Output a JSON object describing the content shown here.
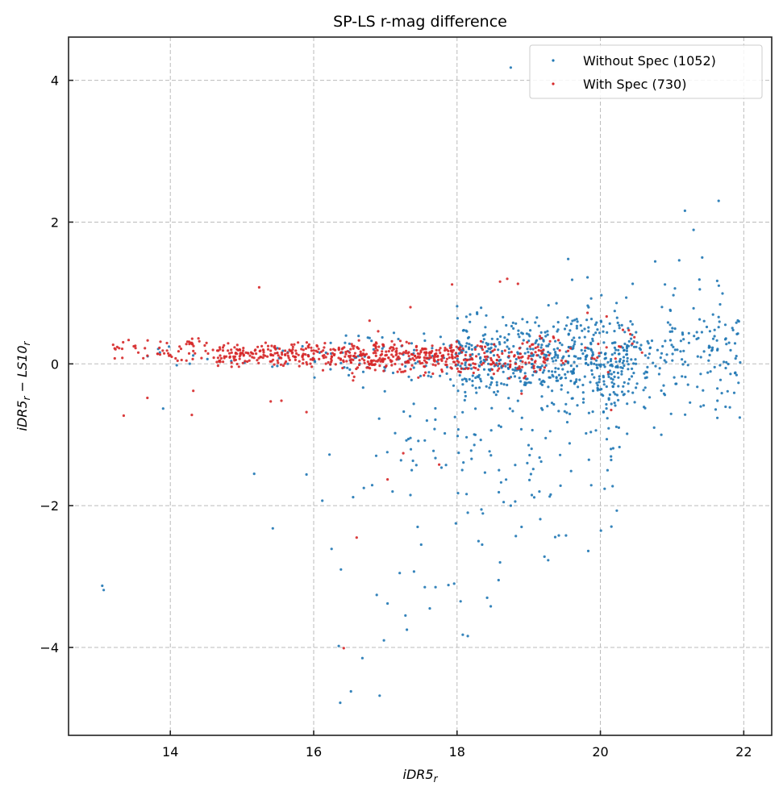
{
  "chart_data": {
    "type": "scatter",
    "title": "SP-LS r-mag difference",
    "xlabel": {
      "main": "iDR5",
      "sub": "r"
    },
    "ylabel": {
      "a_main": "iDR5",
      "a_sub": "r",
      "op": " − ",
      "b_main": "LS10",
      "b_sub": "r"
    },
    "xlim": [
      12.58,
      22.39
    ],
    "ylim": [
      -5.24,
      4.61
    ],
    "xticks": [
      14,
      16,
      18,
      20,
      22
    ],
    "xtick_labels": [
      "14",
      "16",
      "18",
      "20",
      "22"
    ],
    "yticks": [
      -4,
      -2,
      0,
      2,
      4
    ],
    "ytick_labels": [
      "−4",
      "−2",
      "0",
      "2",
      "4"
    ],
    "grid": true,
    "legend_position": "top-right",
    "series": [
      {
        "name": "Without Spec (1052)",
        "color": "#1f77b4",
        "outliers": [
          [
            13.05,
            -3.13
          ],
          [
            13.07,
            -3.19
          ],
          [
            13.9,
            -0.63
          ],
          [
            15.17,
            -1.55
          ],
          [
            15.43,
            -2.32
          ],
          [
            15.9,
            -1.56
          ],
          [
            16.12,
            -1.93
          ],
          [
            16.22,
            -1.28
          ],
          [
            16.25,
            -2.61
          ],
          [
            16.35,
            -3.98
          ],
          [
            16.37,
            -4.78
          ],
          [
            16.38,
            -2.9
          ],
          [
            16.52,
            -4.62
          ],
          [
            16.55,
            -1.88
          ],
          [
            16.68,
            -4.15
          ],
          [
            16.7,
            -1.75
          ],
          [
            16.88,
            -3.26
          ],
          [
            16.92,
            -4.68
          ],
          [
            16.98,
            -3.9
          ],
          [
            17.03,
            -3.38
          ],
          [
            17.1,
            -1.8
          ],
          [
            17.2,
            -2.95
          ],
          [
            17.28,
            -3.55
          ],
          [
            17.3,
            -3.75
          ],
          [
            17.35,
            -1.85
          ],
          [
            17.4,
            -2.93
          ],
          [
            17.45,
            -2.3
          ],
          [
            17.5,
            -2.55
          ],
          [
            17.55,
            -3.15
          ],
          [
            17.62,
            -3.45
          ],
          [
            17.7,
            -3.15
          ],
          [
            17.88,
            -3.12
          ],
          [
            17.96,
            -3.1
          ],
          [
            18.05,
            -3.35
          ],
          [
            18.08,
            -3.82
          ],
          [
            18.15,
            -3.84
          ],
          [
            18.15,
            -2.1
          ],
          [
            18.3,
            -2.5
          ],
          [
            18.35,
            -2.55
          ],
          [
            18.42,
            -3.3
          ],
          [
            18.47,
            -3.42
          ],
          [
            18.58,
            -3.05
          ],
          [
            18.6,
            -2.8
          ],
          [
            18.65,
            -1.95
          ],
          [
            18.75,
            -2.0
          ],
          [
            18.82,
            -2.43
          ],
          [
            18.9,
            -2.3
          ],
          [
            19.22,
            -2.72
          ],
          [
            19.42,
            -2.42
          ],
          [
            19.52,
            -2.42
          ],
          [
            19.55,
            1.48
          ],
          [
            19.82,
            1.22
          ],
          [
            20.45,
            1.13
          ],
          [
            20.9,
            1.12
          ],
          [
            21.1,
            1.46
          ],
          [
            21.18,
            2.16
          ],
          [
            21.3,
            1.89
          ],
          [
            21.42,
            1.5
          ],
          [
            21.63,
            1.17
          ],
          [
            21.65,
            2.3
          ],
          [
            18.75,
            4.18
          ],
          [
            21.95,
            0.02
          ],
          [
            17.58,
            -0.8
          ],
          [
            17.55,
            -1.08
          ],
          [
            19.8,
            -0.98
          ],
          [
            20.1,
            -1.5
          ],
          [
            20.75,
            -0.9
          ],
          [
            20.85,
            -1.0
          ],
          [
            21.4,
            -0.6
          ],
          [
            19.3,
            -0.95
          ]
        ],
        "bulk": [
          {
            "x_range": [
              13.2,
              16.0
            ],
            "y_center": 0.12,
            "y_spread": 0.1,
            "count": 20
          },
          {
            "x_range": [
              16.0,
              18.0
            ],
            "y_center": 0.1,
            "y_spread": 0.18,
            "count": 80
          },
          {
            "x_range": [
              18.0,
              19.5
            ],
            "y_center": 0.05,
            "y_spread": 0.28,
            "count": 330
          },
          {
            "x_range": [
              19.5,
              20.5
            ],
            "y_center": 0.02,
            "y_spread": 0.38,
            "count": 280
          },
          {
            "x_range": [
              20.5,
              21.95
            ],
            "y_center": 0.12,
            "y_spread": 0.42,
            "count": 160
          },
          {
            "x_range": [
              16.8,
              20.3
            ],
            "y_center": -1.2,
            "y_spread": 0.55,
            "count": 112
          }
        ]
      },
      {
        "name": "With Spec (730)",
        "color": "#d62728",
        "outliers": [
          [
            13.35,
            -0.73
          ],
          [
            13.68,
            -0.48
          ],
          [
            14.3,
            -0.72
          ],
          [
            14.32,
            -0.38
          ],
          [
            15.24,
            1.08
          ],
          [
            15.4,
            -0.53
          ],
          [
            15.55,
            -0.52
          ],
          [
            15.9,
            -0.68
          ],
          [
            16.6,
            -2.45
          ],
          [
            16.42,
            -4.01
          ],
          [
            17.03,
            -1.63
          ],
          [
            17.25,
            -1.26
          ],
          [
            17.75,
            -1.42
          ],
          [
            17.93,
            1.12
          ],
          [
            18.6,
            1.16
          ],
          [
            18.7,
            1.2
          ],
          [
            18.85,
            1.13
          ],
          [
            19.82,
            0.72
          ],
          [
            20.15,
            -0.65
          ],
          [
            18.9,
            -0.42
          ],
          [
            16.78,
            0.61
          ],
          [
            16.9,
            0.46
          ],
          [
            17.35,
            0.8
          ]
        ],
        "bulk": [
          {
            "x_range": [
              13.2,
              14.6
            ],
            "y_center": 0.18,
            "y_spread": 0.1,
            "count": 60
          },
          {
            "x_range": [
              14.6,
              16.5
            ],
            "y_center": 0.12,
            "y_spread": 0.08,
            "count": 230
          },
          {
            "x_range": [
              16.5,
              18.0
            ],
            "y_center": 0.1,
            "y_spread": 0.1,
            "count": 260
          },
          {
            "x_range": [
              18.0,
              19.3
            ],
            "y_center": 0.08,
            "y_spread": 0.12,
            "count": 130
          },
          {
            "x_range": [
              19.3,
              20.6
            ],
            "y_center": 0.18,
            "y_spread": 0.18,
            "count": 27
          }
        ]
      }
    ]
  }
}
